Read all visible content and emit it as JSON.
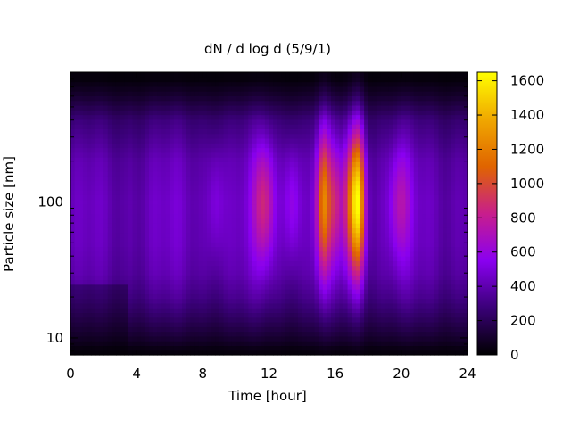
{
  "chart_data": {
    "type": "heatmap",
    "title": "dN / d log d (5/9/1)",
    "xlabel": "Time [hour]",
    "ylabel": "Particle size [nm]",
    "x_range": [
      0,
      24
    ],
    "x_ticks": [
      0,
      4,
      8,
      12,
      16,
      20,
      24
    ],
    "y_scale": "log",
    "y_range_nm": [
      7.5,
      900
    ],
    "y_ticks": [
      10,
      100
    ],
    "colorbar": {
      "range": [
        0,
        1650
      ],
      "ticks": [
        0,
        200,
        400,
        600,
        800,
        1000,
        1200,
        1400,
        1600
      ],
      "colormap": [
        "#000000",
        "#3a0078",
        "#8a00f0",
        "#c81e8c",
        "#e06400",
        "#f0a800",
        "#ffff00"
      ]
    },
    "background_level": {
      "description": "concentration profile vs size, peak near 100 nm",
      "size_nm": [
        8,
        10,
        15,
        20,
        30,
        50,
        100,
        200,
        400,
        600,
        800
      ],
      "value": [
        30,
        120,
        260,
        350,
        430,
        470,
        480,
        440,
        300,
        120,
        30
      ]
    },
    "events": [
      {
        "time_h": 8.8,
        "peak": 620,
        "width_h": 0.35,
        "size_center_nm": 100,
        "size_width_decades": 0.3
      },
      {
        "time_h": 11.7,
        "peak": 900,
        "width_h": 0.45,
        "size_center_nm": 100,
        "size_width_decades": 0.32
      },
      {
        "time_h": 13.4,
        "peak": 700,
        "width_h": 0.35,
        "size_center_nm": 100,
        "size_width_decades": 0.3
      },
      {
        "time_h": 15.3,
        "peak": 1250,
        "width_h": 0.3,
        "size_center_nm": 100,
        "size_width_decades": 0.38
      },
      {
        "time_h": 16.0,
        "peak": 800,
        "width_h": 0.25,
        "size_center_nm": 100,
        "size_width_decades": 0.3
      },
      {
        "time_h": 17.0,
        "peak": 1050,
        "width_h": 0.4,
        "size_center_nm": 100,
        "size_width_decades": 0.35
      },
      {
        "time_h": 17.4,
        "peak": 1350,
        "width_h": 0.3,
        "size_center_nm": 100,
        "size_width_decades": 0.38
      },
      {
        "time_h": 19.9,
        "peak": 750,
        "width_h": 0.45,
        "size_center_nm": 100,
        "size_width_decades": 0.3
      }
    ]
  }
}
